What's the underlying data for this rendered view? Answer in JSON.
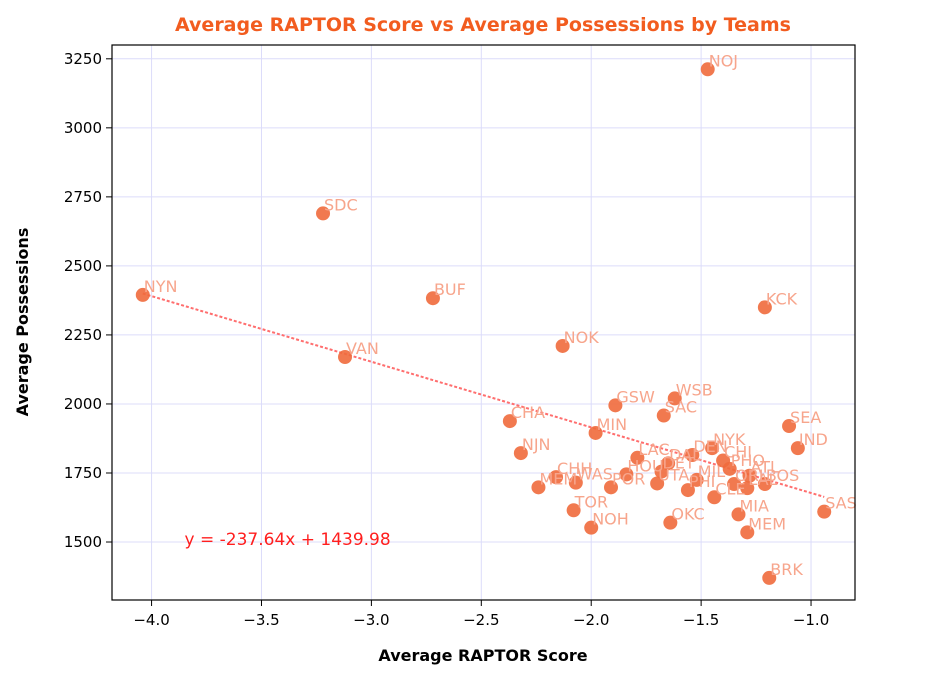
{
  "colors": {
    "title": "#f25c1f",
    "point": "#f06a3c",
    "point_label": "#f7a58c",
    "trend": "#ff6e6e",
    "equation": "#ff1e1e",
    "grid": "#dcdcfa"
  },
  "chart_data": {
    "type": "scatter",
    "title": "Average RAPTOR Score vs Average Possessions by Teams",
    "xlabel": "Average RAPTOR Score",
    "ylabel": "Average Possessions",
    "xlim": [
      -4.18,
      -0.8
    ],
    "ylim": [
      1290,
      3300
    ],
    "xticks": [
      -4.0,
      -3.5,
      -3.0,
      -2.5,
      -2.0,
      -1.5,
      -1.0
    ],
    "xtick_labels": [
      "−4.0",
      "−3.5",
      "−3.0",
      "−2.5",
      "−2.0",
      "−1.5",
      "−1.0"
    ],
    "yticks": [
      1500,
      1750,
      2000,
      2250,
      2500,
      2750,
      3000,
      3250
    ],
    "ytick_labels": [
      "1500",
      "1750",
      "2000",
      "2250",
      "2500",
      "2750",
      "3000",
      "3250"
    ],
    "grid": true,
    "points": [
      {
        "label": "NOJ",
        "x": -1.47,
        "y": 3212
      },
      {
        "label": "SDC",
        "x": -3.22,
        "y": 2690
      },
      {
        "label": "NYN",
        "x": -4.04,
        "y": 2395
      },
      {
        "label": "BUF",
        "x": -2.72,
        "y": 2383
      },
      {
        "label": "KCK",
        "x": -1.21,
        "y": 2350
      },
      {
        "label": "NOK",
        "x": -2.13,
        "y": 2210
      },
      {
        "label": "VAN",
        "x": -3.12,
        "y": 2170
      },
      {
        "label": "WSB",
        "x": -1.62,
        "y": 2020
      },
      {
        "label": "GSW",
        "x": -1.89,
        "y": 1995
      },
      {
        "label": "SAC",
        "x": -1.67,
        "y": 1958
      },
      {
        "label": "CHA",
        "x": -2.37,
        "y": 1938
      },
      {
        "label": "SEA",
        "x": -1.1,
        "y": 1920
      },
      {
        "label": "MIN",
        "x": -1.98,
        "y": 1895
      },
      {
        "label": "NYK",
        "x": -1.45,
        "y": 1840
      },
      {
        "label": "IND",
        "x": -1.06,
        "y": 1840
      },
      {
        "label": "NJN",
        "x": -2.32,
        "y": 1822
      },
      {
        "label": "DEN",
        "x": -1.54,
        "y": 1815
      },
      {
        "label": "CHI",
        "x": -1.4,
        "y": 1795
      },
      {
        "label": "LAC",
        "x": -1.79,
        "y": 1805
      },
      {
        "label": "DAL",
        "x": -1.65,
        "y": 1785
      },
      {
        "label": "PHO",
        "x": -1.37,
        "y": 1765
      },
      {
        "label": "DET",
        "x": -1.68,
        "y": 1755
      },
      {
        "label": "ATL",
        "x": -1.28,
        "y": 1740
      },
      {
        "label": "HOU",
        "x": -1.84,
        "y": 1745
      },
      {
        "label": "CHH",
        "x": -2.16,
        "y": 1735
      },
      {
        "label": "WAS",
        "x": -2.07,
        "y": 1715
      },
      {
        "label": "MIL",
        "x": -1.52,
        "y": 1725
      },
      {
        "label": "BOS",
        "x": -1.21,
        "y": 1710
      },
      {
        "label": "UTA",
        "x": -1.7,
        "y": 1712
      },
      {
        "label": "POR",
        "x": -1.91,
        "y": 1698
      },
      {
        "label": "ORL",
        "x": -1.35,
        "y": 1710
      },
      {
        "label": "LAL",
        "x": -1.29,
        "y": 1695
      },
      {
        "label": "PHI",
        "x": -1.56,
        "y": 1688
      },
      {
        "label": "MEM",
        "x": -2.24,
        "y": 1698
      },
      {
        "label": "CLE",
        "x": -1.44,
        "y": 1662
      },
      {
        "label": "TOR",
        "x": -2.08,
        "y": 1615
      },
      {
        "label": "SAS",
        "x": -0.94,
        "y": 1610
      },
      {
        "label": "MIA",
        "x": -1.33,
        "y": 1600
      },
      {
        "label": "OKC",
        "x": -1.64,
        "y": 1570
      },
      {
        "label": "NOH",
        "x": -2.0,
        "y": 1552
      },
      {
        "label": "MEM",
        "x": -1.29,
        "y": 1535
      },
      {
        "label": "BRK",
        "x": -1.19,
        "y": 1370
      }
    ],
    "trendline": {
      "slope": -237.64,
      "intercept": 1439.98,
      "x_range": [
        -4.04,
        -0.94
      ]
    },
    "equation_text": "y = -237.64x + 1439.98",
    "equation_anchor": [
      -3.85,
      1490
    ]
  }
}
